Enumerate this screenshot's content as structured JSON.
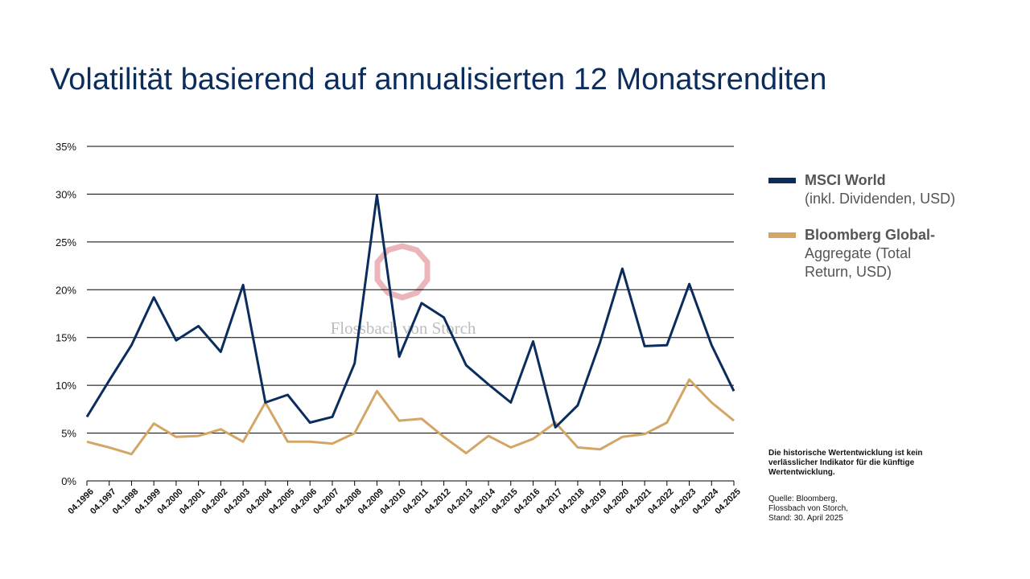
{
  "title": "Volatilität basierend auf annualisierten 12 Monatsrenditen",
  "watermark": "Flossbach von Storch",
  "colors": {
    "msci": "#0b2d5e",
    "bloomberg": "#d4a666",
    "grid": "#000000",
    "watermark_logo": "#e8a8ae"
  },
  "legend": {
    "msci": {
      "name": "MSCI World",
      "sub": "(inkl. Dividenden, USD)"
    },
    "bloomberg": {
      "name": "Bloomberg Global-",
      "sub": "Aggregate (Total",
      "sub2": "Return, USD)"
    }
  },
  "note": "Die historische Wertentwicklung ist kein verlässlicher Indikator für die künftige Wertentwicklung.",
  "source": {
    "line1": "Quelle: Bloomberg,",
    "line2": "Flossbach von Storch,",
    "line3": "Stand: 30. April 2025"
  },
  "chart_data": {
    "type": "line",
    "title": "Volatilität basierend auf annualisierten 12 Monatsrenditen",
    "xlabel": "",
    "ylabel": "",
    "ylim": [
      0,
      35
    ],
    "yticks": [
      0,
      5,
      10,
      15,
      20,
      25,
      30,
      35
    ],
    "ytick_labels": [
      "0%",
      "5%",
      "10%",
      "15%",
      "20%",
      "25%",
      "30%",
      "35%"
    ],
    "grid": true,
    "legend_position": "right",
    "x": [
      "04.1996",
      "04.1997",
      "04.1998",
      "04.1999",
      "04.2000",
      "04.2001",
      "04.2002",
      "04.2003",
      "04.2004",
      "04.2005",
      "04.2006",
      "04.2007",
      "04.2008",
      "04.2009",
      "04.2010",
      "04.2011",
      "04.2012",
      "04.2013",
      "04.2014",
      "04.2015",
      "04.2016",
      "04.2017",
      "04.2018",
      "04.2019",
      "04.2020",
      "04.2021",
      "04.2022",
      "04.2023",
      "04.2024",
      "04.2025"
    ],
    "series": [
      {
        "name": "MSCI World (inkl. Dividenden, USD)",
        "color": "#0b2d5e",
        "values": [
          6.7,
          10.5,
          14.2,
          19.2,
          14.7,
          16.2,
          13.5,
          20.5,
          8.2,
          9.0,
          6.1,
          6.7,
          12.3,
          29.9,
          13.0,
          18.6,
          17.1,
          12.1,
          10.1,
          8.2,
          14.6,
          5.6,
          7.9,
          14.5,
          22.2,
          14.1,
          14.2,
          20.6,
          14.2,
          9.4
        ]
      },
      {
        "name": "Bloomberg Global-Aggregate (Total Return, USD)",
        "color": "#d4a666",
        "values": [
          4.1,
          3.5,
          2.8,
          6.0,
          4.6,
          4.7,
          5.4,
          4.1,
          8.2,
          4.1,
          4.1,
          3.9,
          5.0,
          9.4,
          6.3,
          6.5,
          4.6,
          2.9,
          4.7,
          3.5,
          4.4,
          6.1,
          3.5,
          3.3,
          4.6,
          4.9,
          6.1,
          10.6,
          8.2,
          6.3
        ]
      }
    ]
  }
}
